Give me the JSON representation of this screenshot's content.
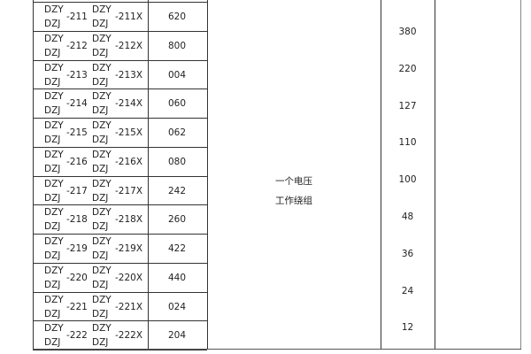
{
  "rows": [
    {
      "prefix_a": "DZY",
      "prefix_b": "DZJ",
      "num": "-211",
      "prefix_c": "DZY",
      "prefix_d": "DZJ",
      "numx": "-211X",
      "code": "620"
    },
    {
      "prefix_a": "DZY",
      "prefix_b": "DZJ",
      "num": "-212",
      "prefix_c": "DZY",
      "prefix_d": "DZJ",
      "numx": "-212X",
      "code": "800"
    },
    {
      "prefix_a": "DZY",
      "prefix_b": "DZJ",
      "num": "-213",
      "prefix_c": "DZY",
      "prefix_d": "DZJ",
      "numx": "-213X",
      "code": "004"
    },
    {
      "prefix_a": "DZY",
      "prefix_b": "DZJ",
      "num": "-214",
      "prefix_c": "DZY",
      "prefix_d": "DZJ",
      "numx": "-214X",
      "code": "060"
    },
    {
      "prefix_a": "DZY",
      "prefix_b": "DZJ",
      "num": "-215",
      "prefix_c": "DZY",
      "prefix_d": "DZJ",
      "numx": "-215X",
      "code": "062"
    },
    {
      "prefix_a": "DZY",
      "prefix_b": "DZJ",
      "num": "-216",
      "prefix_c": "DZY",
      "prefix_d": "DZJ",
      "numx": "-216X",
      "code": "080"
    },
    {
      "prefix_a": "DZY",
      "prefix_b": "DZJ",
      "num": "-217",
      "prefix_c": "DZY",
      "prefix_d": "DZJ",
      "numx": "-217X",
      "code": "242"
    },
    {
      "prefix_a": "DZY",
      "prefix_b": "DZJ",
      "num": "-218",
      "prefix_c": "DZY",
      "prefix_d": "DZJ",
      "numx": "-218X",
      "code": "260"
    },
    {
      "prefix_a": "DZY",
      "prefix_b": "DZJ",
      "num": "-219",
      "prefix_c": "DZY",
      "prefix_d": "DZJ",
      "numx": "-219X",
      "code": "422"
    },
    {
      "prefix_a": "DZY",
      "prefix_b": "DZJ",
      "num": "-220",
      "prefix_c": "DZY",
      "prefix_d": "DZJ",
      "numx": "-220X",
      "code": "440"
    },
    {
      "prefix_a": "DZY",
      "prefix_b": "DZJ",
      "num": "-221",
      "prefix_c": "DZY",
      "prefix_d": "DZJ",
      "numx": "-221X",
      "code": "024"
    },
    {
      "prefix_a": "DZY",
      "prefix_b": "DZJ",
      "num": "-222",
      "prefix_c": "DZY",
      "prefix_d": "DZJ",
      "numx": "-222X",
      "code": "204"
    }
  ],
  "winding": {
    "line1": "一个电压",
    "line2": "工作绕组"
  },
  "voltages": [
    "380",
    "220",
    "127",
    "110",
    "100",
    "48",
    "36",
    "24",
    "12"
  ]
}
